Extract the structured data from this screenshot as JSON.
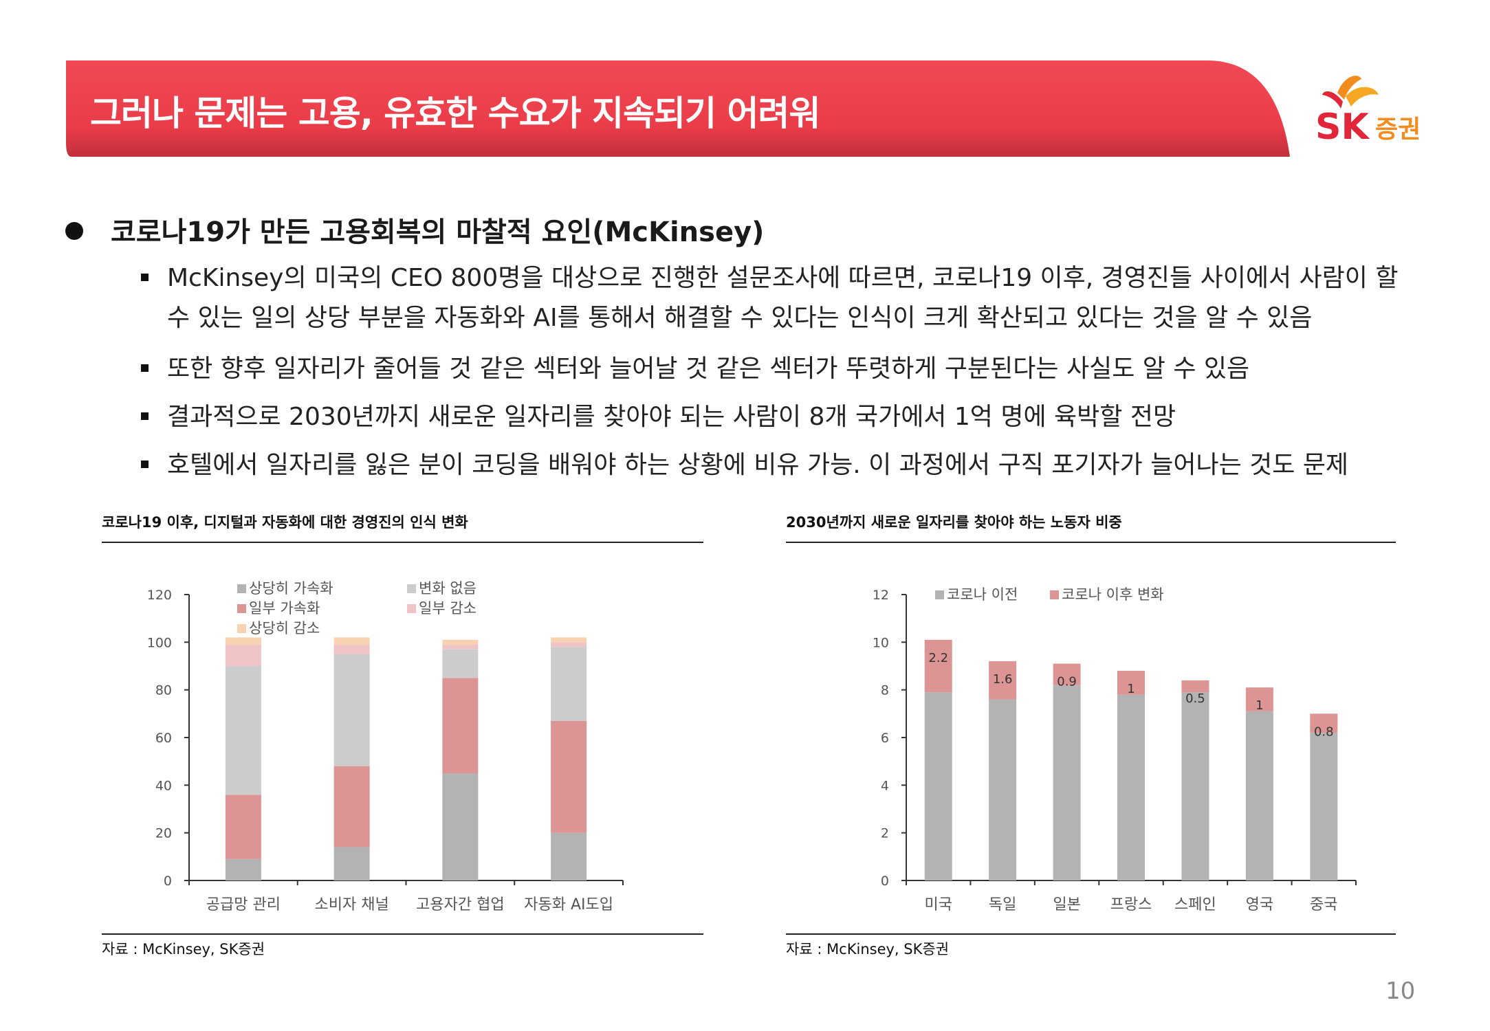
{
  "header": {
    "title": "그러나 문제는 고용, 유효한 수요가 지속되기 어려워",
    "brand_sk": "SK",
    "brand_sub": "증권",
    "brand_color": "#e2263a",
    "brand_orange": "#f28c1e"
  },
  "main": {
    "heading": "코로나19가 만든 고용회복의 마찰적 요인(McKinsey)",
    "points": [
      "McKinsey의 미국의 CEO 800명을 대상으로 진행한 설문조사에 따르면, 코로나19 이후, 경영진들 사이에서 사람이 할 수 있는 일의 상당 부분을 자동화와 AI를 통해서 해결할 수 있다는 인식이 크게 확산되고 있다는 것을 알 수 있음",
      "또한 향후 일자리가 줄어들 것 같은 섹터와 늘어날 것 같은 섹터가 뚜렷하게 구분된다는 사실도 알 수 있음",
      "결과적으로 2030년까지 새로운 일자리를 찾아야 되는 사람이 8개 국가에서 1억 명에 육박할 전망",
      "호텔에서 일자리를 잃은 분이 코딩을 배워야 하는 상황에 비유 가능. 이 과정에서 구직 포기자가 늘어나는 것도 문제"
    ]
  },
  "chart_data": [
    {
      "type": "bar",
      "stacked": true,
      "title": "코로나19 이후, 디지털과 자동화에 대한 경영진의 인식 변화",
      "categories": [
        "공급망 관리",
        "소비자 채널",
        "고용자간 협업",
        "자동화 AI도입"
      ],
      "series": [
        {
          "name": "상당히 가속화",
          "color": "#b3b3b3",
          "values": [
            9,
            14,
            45,
            20
          ]
        },
        {
          "name": "일부 가속화",
          "color": "#dc9494",
          "values": [
            27,
            34,
            40,
            47
          ]
        },
        {
          "name": "변화 없음",
          "color": "#cccccc",
          "values": [
            54,
            47,
            12,
            31
          ]
        },
        {
          "name": "일부 감소",
          "color": "#f0c4c6",
          "values": [
            9,
            4,
            2,
            2
          ]
        },
        {
          "name": "상당히 감소",
          "color": "#f9d2b0",
          "values": [
            3,
            3,
            2,
            2
          ]
        }
      ],
      "yticks": [
        "0",
        "20",
        "40",
        "60",
        "80",
        "100",
        "120"
      ],
      "ylim": [
        0,
        120
      ],
      "source": "자료 : McKinsey, SK증권"
    },
    {
      "type": "bar",
      "stacked": true,
      "title": "2030년까지 새로운 일자리를 찾아야 하는 노동자 비중",
      "categories": [
        "미국",
        "독일",
        "일본",
        "프랑스",
        "스페인",
        "영국",
        "중국"
      ],
      "series": [
        {
          "name": "코로나 이전",
          "color": "#b3b3b3",
          "values": [
            7.9,
            7.6,
            8.2,
            7.8,
            7.9,
            7.1,
            6.2
          ]
        },
        {
          "name": "코로나 이후 변화",
          "color": "#dc9494",
          "values": [
            2.2,
            1.6,
            0.9,
            1,
            0.5,
            1,
            0.8
          ]
        }
      ],
      "data_labels": [
        "2.2",
        "1.6",
        "0.9",
        "1",
        "0.5",
        "1",
        "0.8"
      ],
      "yticks": [
        "0",
        "2",
        "4",
        "6",
        "8",
        "10",
        "12"
      ],
      "ylim": [
        0,
        12
      ],
      "source": "자료 : McKinsey, SK증권"
    }
  ],
  "footer": {
    "page": "10"
  }
}
